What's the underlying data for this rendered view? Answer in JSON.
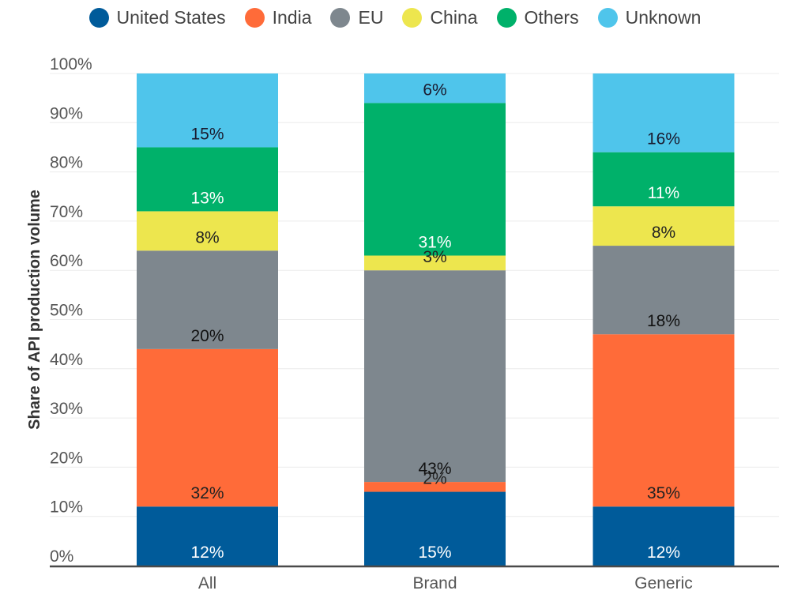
{
  "chart_data": {
    "type": "bar",
    "stacked": true,
    "orientation": "vertical",
    "title": "",
    "xlabel": "",
    "ylabel": "Share of API production volume",
    "ylim": [
      0,
      100
    ],
    "yticks": [
      "0%",
      "10%",
      "20%",
      "30%",
      "40%",
      "50%",
      "60%",
      "70%",
      "80%",
      "90%",
      "100%"
    ],
    "grid": true,
    "legend_position": "top-center",
    "categories": [
      "All",
      "Brand",
      "Generic"
    ],
    "series": [
      {
        "name": "United States",
        "color": "#005B9A",
        "label_color": "#ffffff",
        "values": [
          12,
          15,
          12
        ]
      },
      {
        "name": "India",
        "color": "#FF6B39",
        "label_color": "#222222",
        "values": [
          32,
          2,
          35
        ]
      },
      {
        "name": "EU",
        "color": "#7E878E",
        "label_color": "#111111",
        "values": [
          20,
          43,
          18
        ]
      },
      {
        "name": "China",
        "color": "#EDE64E",
        "label_color": "#222222",
        "values": [
          8,
          3,
          8
        ]
      },
      {
        "name": "Others",
        "color": "#00B16A",
        "label_color": "#ffffff",
        "values": [
          13,
          31,
          11
        ]
      },
      {
        "name": "Unknown",
        "color": "#4FC5EB",
        "label_color": "#1a1a2e",
        "values": [
          15,
          6,
          16
        ]
      }
    ],
    "value_suffix": "%"
  }
}
